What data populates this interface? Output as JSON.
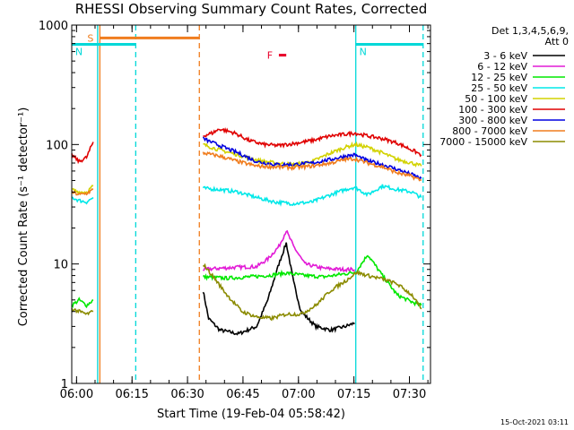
{
  "chart_data": {
    "type": "line",
    "title": "RHESSI Observing Summary Count Rates, Corrected",
    "xlabel": "Start Time (19-Feb-04 05:58:42)",
    "ylabel": "Corrected Count Rate (s⁻¹ detector⁻¹)",
    "x_start": "05:58:42",
    "xlim_min": [
      0,
      97
    ],
    "ylim": [
      1,
      1000
    ],
    "yscale": "log",
    "x_ticks": [
      {
        "label": "06:00",
        "min": 1.3
      },
      {
        "label": "06:15",
        "min": 16.3
      },
      {
        "label": "06:30",
        "min": 31.3
      },
      {
        "label": "06:45",
        "min": 46.3
      },
      {
        "label": "07:00",
        "min": 61.3
      },
      {
        "label": "07:15",
        "min": 76.3
      },
      {
        "label": "07:30",
        "min": 91.3
      }
    ],
    "y_ticks": [
      {
        "label": "1",
        "value": 1
      },
      {
        "label": "10",
        "value": 10
      },
      {
        "label": "100",
        "value": 100
      },
      {
        "label": "1000",
        "value": 1000
      }
    ],
    "legend_header": [
      "Det 1,3,4,5,6,9,",
      "Att 0"
    ],
    "legend_position": "right",
    "timestamp": "15-Oct-2021 03:11",
    "flags": [
      {
        "label": "S",
        "color": "#f07d1e",
        "start_min": 7.5,
        "end_min": 34.5,
        "y": 780
      },
      {
        "label": "N",
        "color": "#00d8d8",
        "start_min": 0,
        "end_min": 17.3,
        "y": 690
      },
      {
        "label": "N",
        "color": "#00d8d8",
        "start_min": 76.8,
        "end_min": 95,
        "y": 690
      },
      {
        "label": "F",
        "color": "#e8002a",
        "start_min": 56,
        "end_min": 58,
        "y": 560
      }
    ],
    "vertical_lines": [
      {
        "min": 7.6,
        "color": "#f07d1e",
        "style": "solid"
      },
      {
        "min": 7.0,
        "color": "#00d8d8",
        "style": "solid"
      },
      {
        "min": 17.3,
        "color": "#00d8d8",
        "style": "dashed"
      },
      {
        "min": 34.5,
        "color": "#f07d1e",
        "style": "dashed"
      },
      {
        "min": 76.8,
        "color": "#00d8d8",
        "style": "solid"
      },
      {
        "min": 95.0,
        "color": "#00d8d8",
        "style": "dashed"
      }
    ],
    "series": [
      {
        "name": "3 - 6 keV",
        "color": "#000000",
        "segments": [
          [
            [
              35.5,
              6.0
            ],
            [
              37,
              3.5
            ],
            [
              40,
              2.8
            ],
            [
              45,
              2.6
            ],
            [
              50,
              3.0
            ],
            [
              53,
              5.0
            ],
            [
              56,
              10
            ],
            [
              58,
              15
            ],
            [
              60,
              7.0
            ],
            [
              62,
              4.0
            ],
            [
              66,
              3.0
            ],
            [
              70,
              2.8
            ],
            [
              74,
              3.0
            ],
            [
              76.5,
              3.2
            ]
          ]
        ]
      },
      {
        "name": "6 - 12 keV",
        "color": "#e21bd6",
        "segments": [
          [
            [
              35.5,
              9.0
            ],
            [
              40,
              9.2
            ],
            [
              45,
              9.4
            ],
            [
              50,
              9.5
            ],
            [
              53,
              11
            ],
            [
              56,
              14
            ],
            [
              58,
              19
            ],
            [
              60,
              14
            ],
            [
              63,
              10
            ],
            [
              68,
              9.2
            ],
            [
              73,
              9.0
            ],
            [
              76.5,
              9.0
            ]
          ]
        ]
      },
      {
        "name": "12 - 25 keV",
        "color": "#00e800",
        "segments": [
          [
            [
              0,
              4.5
            ],
            [
              2,
              5.0
            ],
            [
              4,
              4.5
            ],
            [
              5.8,
              5.0
            ]
          ],
          [
            [
              35.5,
              7.8
            ],
            [
              42,
              7.6
            ],
            [
              48,
              7.8
            ],
            [
              53,
              8.0
            ],
            [
              58,
              8.4
            ],
            [
              63,
              8.0
            ],
            [
              68,
              7.8
            ],
            [
              73,
              8.2
            ],
            [
              76.5,
              8.5
            ]
          ],
          [
            [
              76.8,
              8.5
            ],
            [
              80,
              12
            ],
            [
              84,
              8.0
            ],
            [
              88,
              5.5
            ],
            [
              92,
              4.8
            ],
            [
              94.5,
              4.5
            ]
          ]
        ]
      },
      {
        "name": "25 - 50 keV",
        "color": "#00e8e8",
        "segments": [
          [
            [
              0,
              36
            ],
            [
              2,
              34
            ],
            [
              4,
              33
            ],
            [
              5.8,
              36
            ]
          ],
          [
            [
              35.5,
              43
            ],
            [
              40,
              42
            ],
            [
              45,
              40
            ],
            [
              50,
              36
            ],
            [
              55,
              33
            ],
            [
              60,
              32
            ],
            [
              65,
              33
            ],
            [
              70,
              38
            ],
            [
              74,
              42
            ],
            [
              76.5,
              44
            ],
            [
              80,
              38
            ],
            [
              84,
              45
            ],
            [
              88,
              42
            ],
            [
              92,
              40
            ],
            [
              94.5,
              36
            ]
          ]
        ]
      },
      {
        "name": "50 - 100 keV",
        "color": "#d2d200",
        "segments": [
          [
            [
              0,
              42
            ],
            [
              2,
              40
            ],
            [
              4,
              40
            ],
            [
              5.8,
              45
            ]
          ],
          [
            [
              35.5,
              100
            ],
            [
              40,
              90
            ],
            [
              45,
              82
            ],
            [
              50,
              74
            ],
            [
              55,
              70
            ],
            [
              60,
              68
            ],
            [
              65,
              72
            ],
            [
              70,
              85
            ],
            [
              74,
              95
            ],
            [
              76.5,
              100
            ],
            [
              80,
              95
            ],
            [
              84,
              85
            ],
            [
              88,
              75
            ],
            [
              92,
              70
            ],
            [
              94.5,
              66
            ]
          ]
        ]
      },
      {
        "name": "100 - 300 keV",
        "color": "#e00000",
        "segments": [
          [
            [
              0,
              82
            ],
            [
              2,
              72
            ],
            [
              4,
              78
            ],
            [
              5.8,
              105
            ]
          ],
          [
            [
              35.5,
              118
            ],
            [
              38,
              125
            ],
            [
              40,
              135
            ],
            [
              44,
              125
            ],
            [
              48,
              108
            ],
            [
              52,
              100
            ],
            [
              56,
              98
            ],
            [
              60,
              102
            ],
            [
              65,
              108
            ],
            [
              70,
              118
            ],
            [
              74,
              122
            ],
            [
              76.5,
              125
            ],
            [
              80,
              118
            ],
            [
              84,
              112
            ],
            [
              88,
              103
            ],
            [
              92,
              90
            ],
            [
              94.5,
              82
            ]
          ]
        ]
      },
      {
        "name": "300 - 800 keV",
        "color": "#0000e0",
        "segments": [
          [
            [
              35.5,
              112
            ],
            [
              40,
              98
            ],
            [
              45,
              85
            ],
            [
              50,
              72
            ],
            [
              55,
              68
            ],
            [
              60,
              68
            ],
            [
              65,
              70
            ],
            [
              70,
              75
            ],
            [
              74,
              80
            ],
            [
              76.5,
              82
            ],
            [
              80,
              73
            ],
            [
              84,
              68
            ],
            [
              88,
              62
            ],
            [
              92,
              56
            ],
            [
              94.5,
              52
            ]
          ]
        ]
      },
      {
        "name": "800 - 7000 keV",
        "color": "#f07d1e",
        "segments": [
          [
            [
              0,
              40
            ],
            [
              2,
              38
            ],
            [
              4,
              39
            ],
            [
              5.8,
              42
            ]
          ],
          [
            [
              35.5,
              85
            ],
            [
              40,
              80
            ],
            [
              45,
              72
            ],
            [
              50,
              66
            ],
            [
              55,
              65
            ],
            [
              60,
              64
            ],
            [
              65,
              66
            ],
            [
              70,
              70
            ],
            [
              74,
              75
            ],
            [
              76.5,
              76
            ],
            [
              80,
              70
            ],
            [
              84,
              65
            ],
            [
              88,
              58
            ],
            [
              92,
              54
            ],
            [
              94.5,
              50
            ]
          ]
        ]
      },
      {
        "name": "7000 - 15000 keV",
        "color": "#8b8b00",
        "segments": [
          [
            [
              0,
              4.2
            ],
            [
              2,
              4.0
            ],
            [
              4,
              3.8
            ],
            [
              5.8,
              4.0
            ]
          ],
          [
            [
              35.5,
              10
            ],
            [
              38,
              8.0
            ],
            [
              42,
              5.5
            ],
            [
              46,
              4.0
            ],
            [
              50,
              3.6
            ],
            [
              54,
              3.5
            ],
            [
              58,
              3.8
            ],
            [
              62,
              3.8
            ],
            [
              66,
              4.5
            ],
            [
              70,
              6.0
            ],
            [
              74,
              7.2
            ],
            [
              77,
              8.5
            ],
            [
              80,
              8.0
            ],
            [
              84,
              7.5
            ],
            [
              88,
              6.8
            ],
            [
              92,
              5.5
            ],
            [
              94.5,
              4.2
            ]
          ]
        ]
      }
    ]
  }
}
